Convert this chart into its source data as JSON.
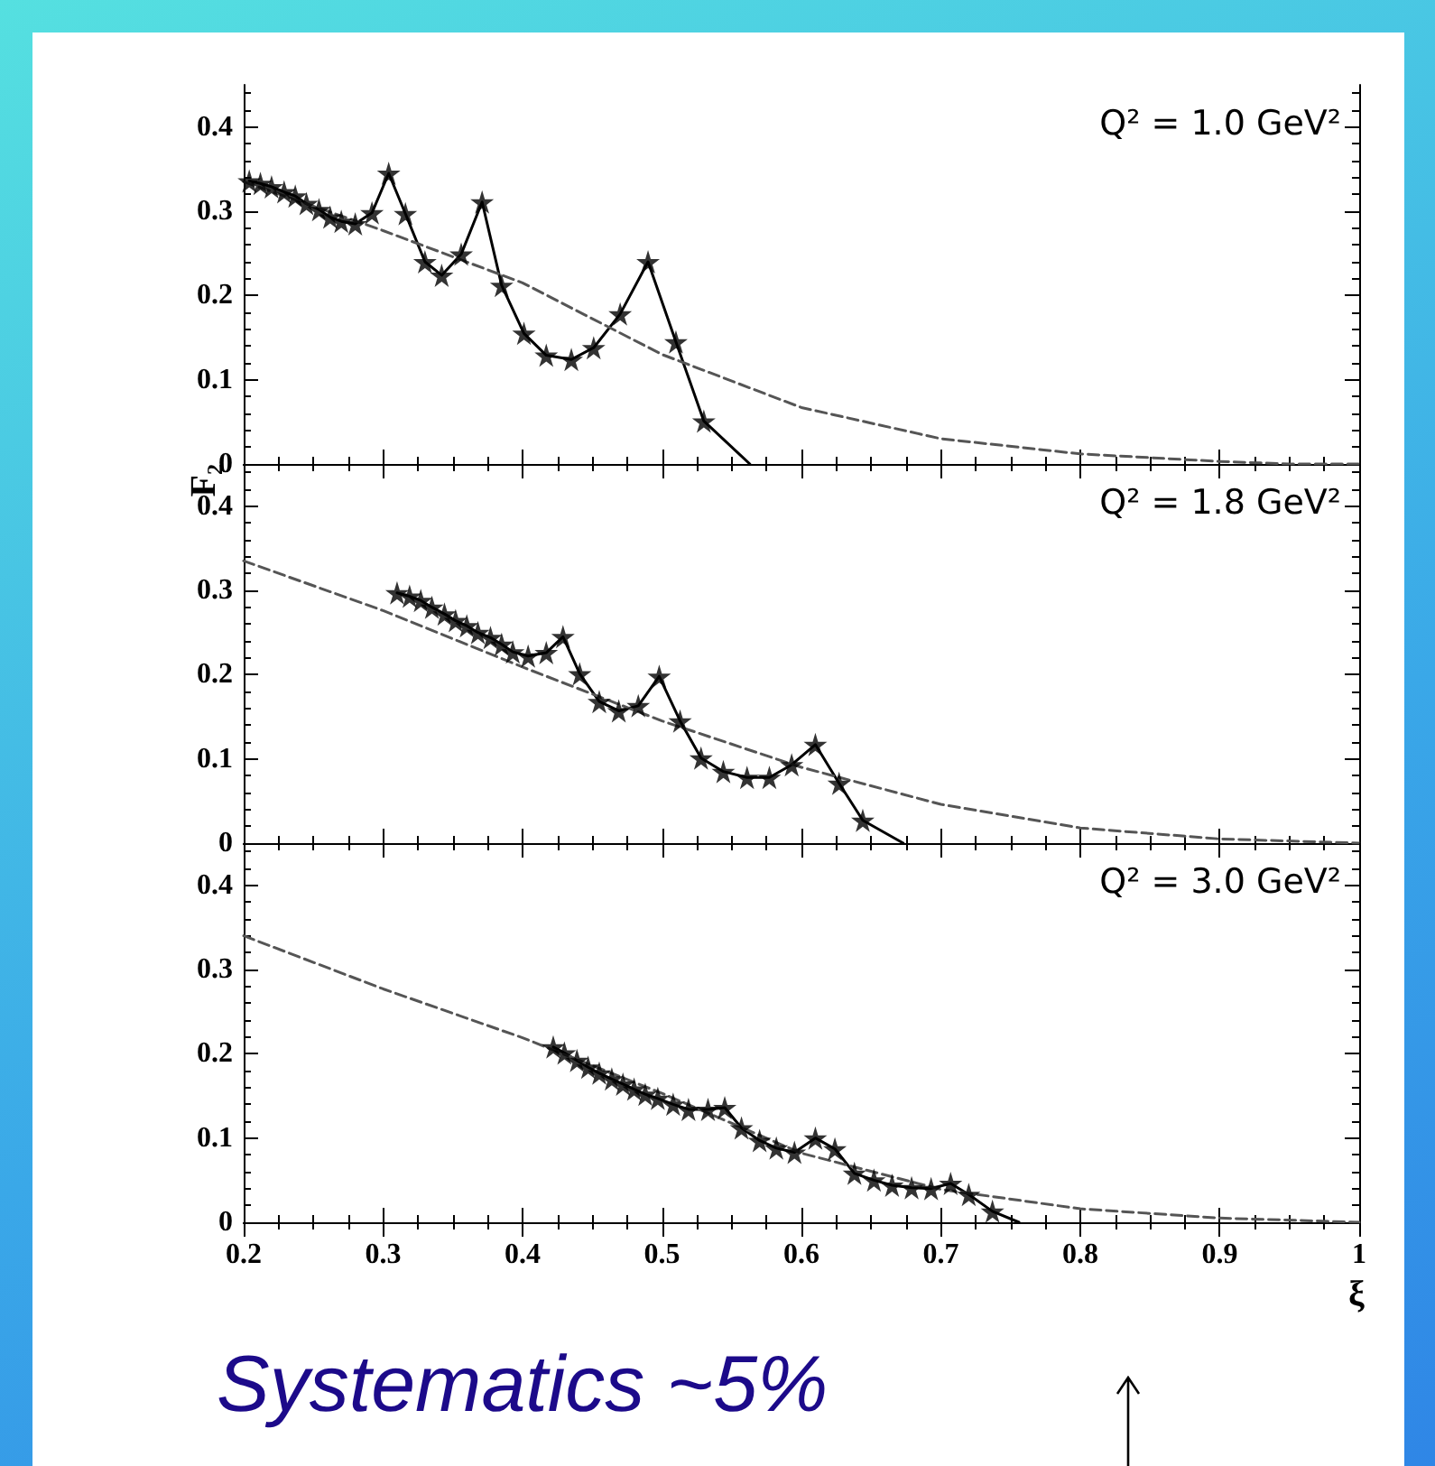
{
  "chart_data": [
    {
      "type": "line",
      "annotations": [
        "Q² = 1.0 GeV²"
      ],
      "xlim": [
        0.2,
        1
      ],
      "xticks": [
        0.2,
        0.3,
        0.4,
        0.5,
        0.6,
        0.7,
        0.8,
        0.9,
        1
      ],
      "ylim": [
        0,
        0.45
      ],
      "yticks": [
        0,
        0.1,
        0.2,
        0.3,
        0.4
      ],
      "tick_labels": "y",
      "series": [
        {
          "type": "scatter",
          "marker": "star",
          "color": "#000000",
          "x": [
            0.204,
            0.212,
            0.22,
            0.229,
            0.237,
            0.245,
            0.254,
            0.262,
            0.27,
            0.28,
            0.292,
            0.304,
            0.316,
            0.33,
            0.342,
            0.356,
            0.371,
            0.385,
            0.401,
            0.417,
            0.435,
            0.451,
            0.47,
            0.49,
            0.51,
            0.53
          ],
          "values": [
            0.336,
            0.333,
            0.329,
            0.323,
            0.318,
            0.309,
            0.302,
            0.293,
            0.288,
            0.285,
            0.298,
            0.345,
            0.297,
            0.24,
            0.224,
            0.249,
            0.311,
            0.212,
            0.155,
            0.129,
            0.124,
            0.138,
            0.178,
            0.24,
            0.145,
            0.051
          ]
        },
        {
          "marker": "none",
          "line_style": "solid",
          "color": "#000000",
          "x": [
            0.204,
            0.212,
            0.22,
            0.229,
            0.237,
            0.245,
            0.254,
            0.262,
            0.27,
            0.28,
            0.292,
            0.304,
            0.316,
            0.33,
            0.342,
            0.356,
            0.371,
            0.385,
            0.401,
            0.417,
            0.435,
            0.451,
            0.47,
            0.49,
            0.51,
            0.53,
            0.563
          ],
          "values": [
            0.336,
            0.333,
            0.329,
            0.323,
            0.318,
            0.309,
            0.302,
            0.293,
            0.288,
            0.285,
            0.298,
            0.345,
            0.297,
            0.24,
            0.224,
            0.249,
            0.311,
            0.212,
            0.155,
            0.129,
            0.124,
            0.138,
            0.178,
            0.24,
            0.145,
            0.051,
            0
          ]
        },
        {
          "marker": "none",
          "line_style": "dashed",
          "color": "#555555",
          "x": [
            0.2,
            0.3,
            0.4,
            0.5,
            0.6,
            0.7,
            0.8,
            0.9,
            0.95,
            1
          ],
          "values": [
            0.335,
            0.277,
            0.215,
            0.13,
            0.067,
            0.03,
            0.012,
            0.003,
            0,
            0
          ]
        }
      ]
    },
    {
      "type": "line",
      "ylabel": "F₂",
      "annotations": [
        "Q² = 1.8 GeV²"
      ],
      "xlim": [
        0.2,
        1
      ],
      "xticks": [
        0.2,
        0.3,
        0.4,
        0.5,
        0.6,
        0.7,
        0.8,
        0.9,
        1
      ],
      "ylim": [
        0,
        0.45
      ],
      "yticks": [
        0,
        0.1,
        0.2,
        0.3,
        0.4
      ],
      "tick_labels": "y",
      "series": [
        {
          "type": "scatter",
          "marker": "star",
          "color": "#000000",
          "x": [
            0.31,
            0.319,
            0.327,
            0.335,
            0.344,
            0.352,
            0.36,
            0.368,
            0.377,
            0.385,
            0.393,
            0.404,
            0.417,
            0.429,
            0.441,
            0.455,
            0.469,
            0.483,
            0.498,
            0.513,
            0.528,
            0.544,
            0.561,
            0.577,
            0.593,
            0.61,
            0.627,
            0.644
          ],
          "values": [
            0.297,
            0.293,
            0.288,
            0.28,
            0.272,
            0.264,
            0.258,
            0.25,
            0.244,
            0.236,
            0.227,
            0.222,
            0.226,
            0.245,
            0.201,
            0.168,
            0.157,
            0.163,
            0.198,
            0.145,
            0.101,
            0.085,
            0.078,
            0.078,
            0.093,
            0.117,
            0.071,
            0.027
          ]
        },
        {
          "marker": "none",
          "line_style": "solid",
          "color": "#000000",
          "x": [
            0.31,
            0.319,
            0.327,
            0.335,
            0.344,
            0.352,
            0.36,
            0.368,
            0.377,
            0.385,
            0.393,
            0.404,
            0.417,
            0.429,
            0.441,
            0.455,
            0.469,
            0.483,
            0.498,
            0.513,
            0.528,
            0.544,
            0.561,
            0.577,
            0.593,
            0.61,
            0.627,
            0.644,
            0.673
          ],
          "values": [
            0.297,
            0.293,
            0.288,
            0.28,
            0.272,
            0.264,
            0.258,
            0.25,
            0.244,
            0.236,
            0.227,
            0.222,
            0.226,
            0.245,
            0.201,
            0.168,
            0.157,
            0.163,
            0.198,
            0.145,
            0.101,
            0.085,
            0.078,
            0.078,
            0.093,
            0.117,
            0.071,
            0.027,
            0
          ]
        },
        {
          "marker": "none",
          "line_style": "dashed",
          "color": "#555555",
          "x": [
            0.2,
            0.3,
            0.4,
            0.5,
            0.6,
            0.7,
            0.8,
            0.9,
            1
          ],
          "values": [
            0.335,
            0.276,
            0.209,
            0.145,
            0.09,
            0.046,
            0.018,
            0.005,
            0
          ]
        }
      ]
    },
    {
      "type": "line",
      "xlabel": "ξ",
      "annotations": [
        "Q² = 3.0 GeV²",
        "Systematics ~5%"
      ],
      "xlim": [
        0.2,
        1
      ],
      "xticks": [
        0.2,
        0.3,
        0.4,
        0.5,
        0.6,
        0.7,
        0.8,
        0.9,
        1
      ],
      "ylim": [
        0,
        0.45
      ],
      "yticks": [
        0,
        0.1,
        0.2,
        0.3,
        0.4
      ],
      "series": [
        {
          "type": "scatter",
          "marker": "star",
          "color": "#000000",
          "x": [
            0.422,
            0.43,
            0.439,
            0.447,
            0.455,
            0.464,
            0.472,
            0.48,
            0.488,
            0.497,
            0.508,
            0.519,
            0.533,
            0.545,
            0.557,
            0.57,
            0.582,
            0.595,
            0.61,
            0.624,
            0.638,
            0.652,
            0.665,
            0.679,
            0.693,
            0.707,
            0.72,
            0.737
          ],
          "values": [
            0.208,
            0.201,
            0.192,
            0.184,
            0.177,
            0.17,
            0.164,
            0.158,
            0.152,
            0.147,
            0.14,
            0.134,
            0.134,
            0.136,
            0.112,
            0.097,
            0.088,
            0.083,
            0.1,
            0.087,
            0.058,
            0.05,
            0.044,
            0.041,
            0.04,
            0.046,
            0.033,
            0.013
          ]
        },
        {
          "marker": "none",
          "line_style": "solid",
          "color": "#000000",
          "x": [
            0.422,
            0.43,
            0.439,
            0.447,
            0.455,
            0.464,
            0.472,
            0.48,
            0.488,
            0.497,
            0.508,
            0.519,
            0.533,
            0.545,
            0.557,
            0.57,
            0.582,
            0.595,
            0.61,
            0.624,
            0.638,
            0.652,
            0.665,
            0.679,
            0.693,
            0.707,
            0.72,
            0.737,
            0.756
          ],
          "values": [
            0.208,
            0.201,
            0.192,
            0.184,
            0.177,
            0.17,
            0.164,
            0.158,
            0.152,
            0.147,
            0.14,
            0.134,
            0.134,
            0.136,
            0.112,
            0.097,
            0.088,
            0.083,
            0.1,
            0.087,
            0.058,
            0.05,
            0.044,
            0.041,
            0.04,
            0.046,
            0.033,
            0.013,
            0
          ]
        },
        {
          "marker": "none",
          "line_style": "dashed",
          "color": "#555555",
          "x": [
            0.2,
            0.3,
            0.4,
            0.5,
            0.6,
            0.7,
            0.8,
            0.9,
            1
          ],
          "values": [
            0.34,
            0.277,
            0.219,
            0.153,
            0.082,
            0.039,
            0.016,
            0.005,
            0
          ]
        }
      ]
    }
  ]
}
